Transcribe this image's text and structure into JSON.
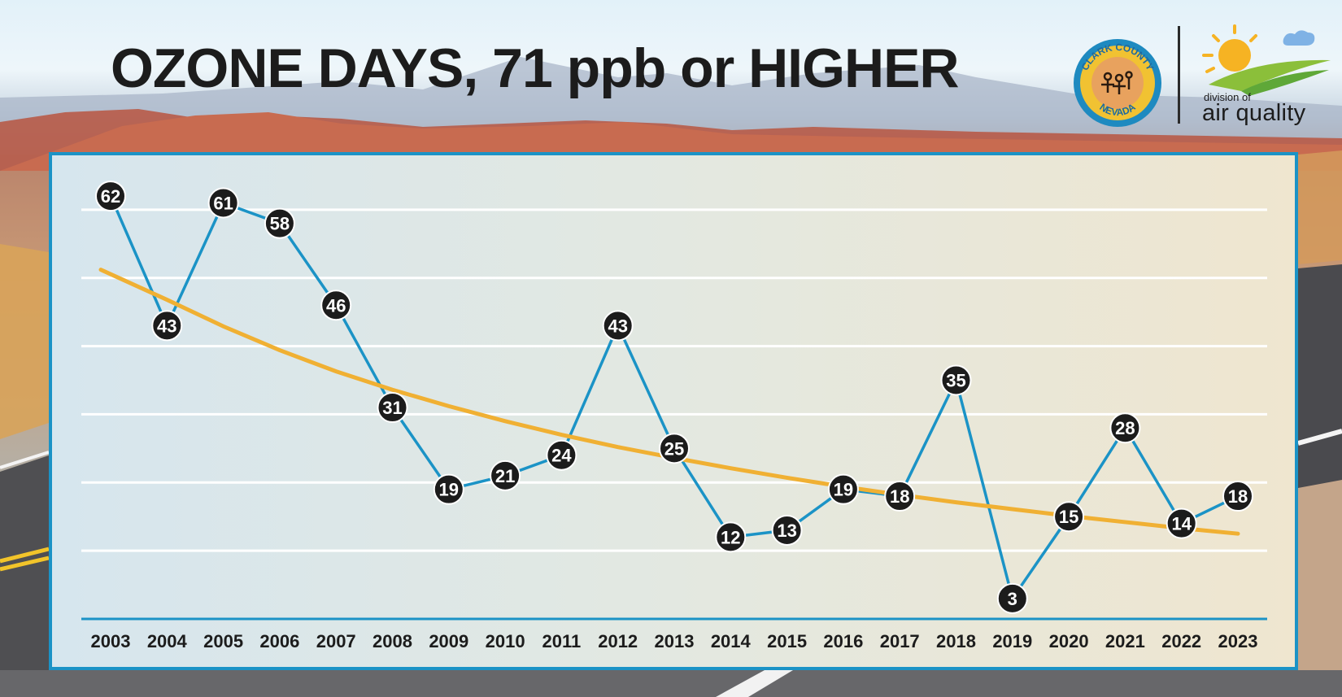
{
  "title": "OZONE DAYS, 71 ppb or HIGHER",
  "logos": {
    "county_top": "CLARK COUNTY",
    "county_bottom": "NEVADA",
    "daq_small": "division of",
    "daq_big": "air quality"
  },
  "colors": {
    "line": "#1b93c6",
    "trend": "#f0b033",
    "marker": "#1c1c1c",
    "grid": "#ffffff",
    "title": "#1c1c1c"
  },
  "chart_data": {
    "type": "line",
    "title": "OZONE DAYS, 71 ppb or HIGHER",
    "xlabel": "",
    "ylabel": "",
    "categories": [
      "2003",
      "2004",
      "2005",
      "2006",
      "2007",
      "2008",
      "2009",
      "2010",
      "2011",
      "2012",
      "2013",
      "2014",
      "2015",
      "2016",
      "2017",
      "2018",
      "2019",
      "2020",
      "2021",
      "2022",
      "2023"
    ],
    "series": [
      {
        "values": [
          62,
          43,
          61,
          58,
          46,
          31,
          19,
          21,
          24,
          43,
          25,
          12,
          13,
          19,
          18,
          35,
          3,
          15,
          28,
          14,
          18
        ],
        "labels": true
      },
      {
        "type": "trend",
        "values": [
          51.2,
          46.8,
          42.9,
          39.4,
          36.3,
          33.6,
          31.2,
          29.0,
          27.0,
          25.2,
          23.6,
          22.1,
          20.7,
          19.4,
          18.2,
          17.1,
          16.1,
          15.1,
          14.2,
          13.3,
          12.5
        ]
      }
    ],
    "ylim": [
      0,
      70
    ],
    "grid": true,
    "legend": "none"
  }
}
